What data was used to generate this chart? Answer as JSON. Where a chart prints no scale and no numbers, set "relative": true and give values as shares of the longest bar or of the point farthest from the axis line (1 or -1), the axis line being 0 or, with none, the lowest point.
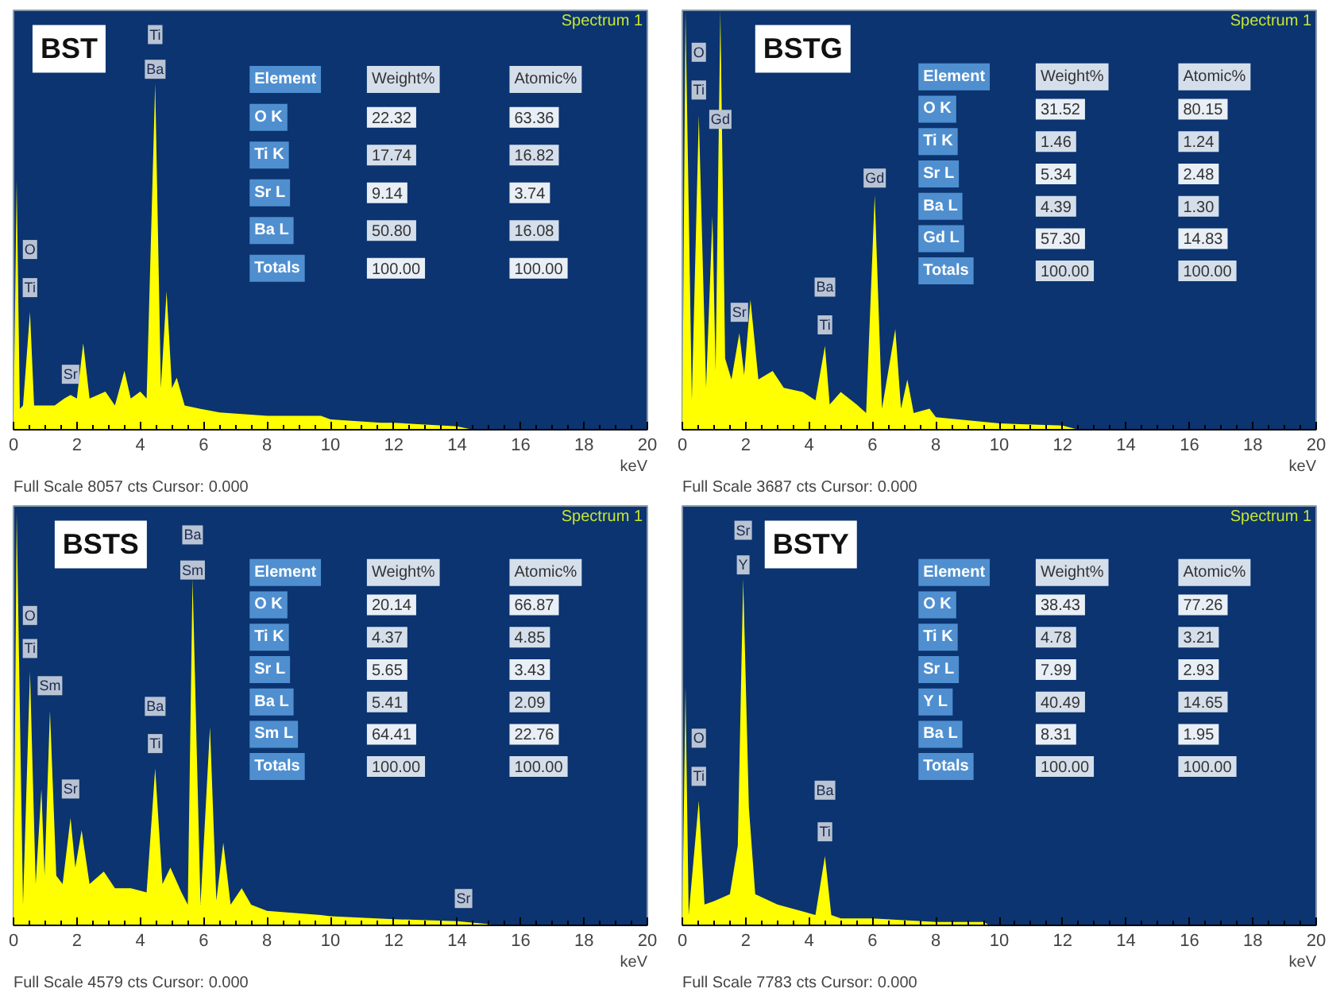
{
  "chart_data": [
    {
      "type": "area",
      "title": "BST",
      "xlabel": "keV",
      "color": "#ffff00",
      "relative": true,
      "xlim": [
        0,
        20
      ],
      "xticks": [
        0,
        2,
        4,
        6,
        8,
        10,
        12,
        14,
        16,
        18,
        20
      ],
      "x": [
        0,
        0.1,
        0.2,
        0.3,
        0.52,
        0.65,
        0.9,
        1.3,
        1.6,
        1.8,
        2.0,
        2.2,
        2.4,
        2.9,
        3.2,
        3.5,
        3.7,
        4.0,
        4.2,
        4.47,
        4.65,
        4.83,
        5.0,
        5.15,
        5.4,
        5.9,
        6.5,
        8,
        9.7,
        10,
        11.6,
        12,
        14,
        14.5,
        20
      ],
      "values": [
        0,
        0.72,
        0.06,
        0.07,
        0.34,
        0.07,
        0.07,
        0.07,
        0.09,
        0.1,
        0.09,
        0.25,
        0.09,
        0.11,
        0.07,
        0.17,
        0.09,
        0.11,
        0.09,
        1,
        0.12,
        0.4,
        0.12,
        0.15,
        0.07,
        0.06,
        0.05,
        0.04,
        0.04,
        0.03,
        0.02,
        0.02,
        0.01,
        0,
        0
      ],
      "annotations": [
        "Spectrum 1",
        "Full Scale 8057 cts Cursor: 0.000",
        "Element",
        "Weight%",
        "Atomic%",
        "O K",
        "22.32",
        "63.36",
        "Ti K",
        "17.74",
        "16.82",
        "Sr L",
        "9.14",
        "3.74",
        "Ba L",
        "50.80",
        "16.08",
        "Totals",
        "100.00",
        "100.00",
        {
          "text": "Ti",
          "x": 4.47,
          "y": 1
        },
        {
          "text": "Ba",
          "x": 4.47,
          "y": 1
        },
        {
          "text": "O",
          "x": 0.52,
          "y": 0.52
        },
        {
          "text": "Ti",
          "x": 0.52,
          "y": 0.41
        },
        {
          "text": "Sr",
          "x": 1.8,
          "y": 0.16
        }
      ]
    },
    {
      "type": "area",
      "title": "BSTG",
      "xlabel": "keV",
      "color": "#ffff00",
      "relative": true,
      "xlim": [
        0,
        20
      ],
      "xticks": [
        0,
        2,
        4,
        6,
        8,
        10,
        12,
        14,
        16,
        18,
        20
      ],
      "x": [
        0,
        0.1,
        0.3,
        0.52,
        0.75,
        0.95,
        1.05,
        1.2,
        1.35,
        1.55,
        1.8,
        1.95,
        2.15,
        2.4,
        2.85,
        3.2,
        3.8,
        4.2,
        4.5,
        4.65,
        5.0,
        5.5,
        5.8,
        6.07,
        6.3,
        6.72,
        6.9,
        7.1,
        7.3,
        7.8,
        8,
        10,
        12,
        12.5,
        20
      ],
      "values": [
        0,
        1,
        0.07,
        0.75,
        0.1,
        0.51,
        0.14,
        1,
        0.17,
        0.12,
        0.23,
        0.13,
        0.31,
        0.12,
        0.14,
        0.1,
        0.09,
        0.07,
        0.2,
        0.06,
        0.09,
        0.06,
        0.04,
        0.56,
        0.05,
        0.24,
        0.05,
        0.12,
        0.04,
        0.05,
        0.03,
        0.015,
        0.01,
        0,
        0
      ],
      "annotations": [
        "Spectrum 1",
        "Full Scale 3687 cts Cursor: 0.000",
        "Element",
        "Weight%",
        "Atomic%",
        "O K",
        "31.52",
        "80.15",
        "Ti K",
        "1.46",
        "1.24",
        "Sr L",
        "5.34",
        "2.48",
        "Ba L",
        "4.39",
        "1.30",
        "Gd L",
        "57.30",
        "14.83",
        "Totals",
        "100.00",
        "100.00",
        {
          "text": "O",
          "x": 0.52,
          "y": 0.9
        },
        {
          "text": "Ti",
          "x": 0.52,
          "y": 0.81
        },
        {
          "text": "Gd",
          "x": 1.2,
          "y": 0.74
        },
        {
          "text": "Gd",
          "x": 6.07,
          "y": 0.6
        },
        {
          "text": "Sr",
          "x": 1.8,
          "y": 0.28
        },
        {
          "text": "Ba",
          "x": 4.5,
          "y": 0.34
        },
        {
          "text": "Ti",
          "x": 4.5,
          "y": 0.25
        }
      ]
    },
    {
      "type": "area",
      "title": "BSTS",
      "xlabel": "keV",
      "color": "#ffff00",
      "relative": true,
      "xlim": [
        0,
        20
      ],
      "xticks": [
        0,
        2,
        4,
        6,
        8,
        10,
        12,
        14,
        16,
        18,
        20
      ],
      "x": [
        0,
        0.1,
        0.3,
        0.52,
        0.7,
        0.88,
        0.98,
        1.15,
        1.35,
        1.55,
        1.8,
        1.95,
        2.15,
        2.4,
        2.85,
        3.2,
        3.7,
        4.2,
        4.47,
        4.7,
        4.95,
        5.3,
        5.5,
        5.65,
        5.9,
        6.2,
        6.4,
        6.62,
        6.85,
        7.2,
        7.5,
        8,
        9.7,
        10,
        12,
        14,
        15,
        15.2,
        20
      ],
      "values": [
        0,
        1,
        0.05,
        0.615,
        0.1,
        0.33,
        0.12,
        0.52,
        0.12,
        0.1,
        0.26,
        0.14,
        0.23,
        0.1,
        0.13,
        0.09,
        0.09,
        0.08,
        0.38,
        0.1,
        0.14,
        0.08,
        0.05,
        0.84,
        0.05,
        0.48,
        0.06,
        0.2,
        0.05,
        0.09,
        0.05,
        0.035,
        0.025,
        0.022,
        0.015,
        0.01,
        0.003,
        0,
        0
      ],
      "annotations": [
        "Spectrum 1",
        "Full Scale 4579 cts Cursor: 0.000",
        "Element",
        "Weight%",
        "Atomic%",
        "O K",
        "20.14",
        "66.87",
        "Ti K",
        "4.37",
        "4.85",
        "Sr L",
        "5.65",
        "3.43",
        "Ba L",
        "5.41",
        "2.09",
        "Sm L",
        "64.41",
        "22.76",
        "Totals",
        "100.00",
        "100.00",
        {
          "text": "Ba",
          "x": 5.65,
          "y": 0.945
        },
        {
          "text": "Sm",
          "x": 5.65,
          "y": 0.86
        },
        {
          "text": "O",
          "x": 0.52,
          "y": 0.75
        },
        {
          "text": "Ti",
          "x": 0.52,
          "y": 0.67
        },
        {
          "text": "Sm",
          "x": 1.15,
          "y": 0.58
        },
        {
          "text": "Sr",
          "x": 1.8,
          "y": 0.33
        },
        {
          "text": "Ba",
          "x": 4.47,
          "y": 0.53
        },
        {
          "text": "Ti",
          "x": 4.47,
          "y": 0.44
        },
        {
          "text": "Sr",
          "x": 14.2,
          "y": 0.065
        }
      ]
    },
    {
      "type": "area",
      "title": "BSTY",
      "xlabel": "keV",
      "color": "#ffff00",
      "relative": true,
      "xlim": [
        0,
        20
      ],
      "xticks": [
        0,
        2,
        4,
        6,
        8,
        10,
        12,
        14,
        16,
        18,
        20
      ],
      "x": [
        0,
        0.1,
        0.2,
        0.52,
        0.7,
        1.0,
        1.5,
        1.75,
        1.92,
        2.1,
        2.3,
        3.0,
        4.2,
        4.5,
        4.7,
        5.0,
        6,
        8,
        9.5,
        9.7,
        20
      ],
      "values": [
        0,
        0.69,
        0.03,
        0.36,
        0.06,
        0.07,
        0.09,
        0.23,
        1,
        0.34,
        0.09,
        0.06,
        0.03,
        0.2,
        0.03,
        0.02,
        0.02,
        0.01,
        0.01,
        0,
        0
      ],
      "annotations": [
        "Spectrum 1",
        "Full Scale 7783 cts Cursor: 0.000",
        "Element",
        "Weight%",
        "Atomic%",
        "O K",
        "38.43",
        "77.26",
        "Ti K",
        "4.78",
        "3.21",
        "Sr L",
        "7.99",
        "2.93",
        "Y L",
        "40.49",
        "14.65",
        "Ba L",
        "8.31",
        "1.95",
        "Totals",
        "100.00",
        "100.00",
        {
          "text": "Sr",
          "x": 1.92,
          "y": 1
        },
        {
          "text": "Y",
          "x": 1.92,
          "y": 1
        },
        {
          "text": "O",
          "x": 0.52,
          "y": 0.54
        },
        {
          "text": "Ti",
          "x": 0.52,
          "y": 0.43
        },
        {
          "text": "Ba",
          "x": 4.5,
          "y": 0.39
        },
        {
          "text": "Ti",
          "x": 4.5,
          "y": 0.27
        }
      ]
    }
  ]
}
